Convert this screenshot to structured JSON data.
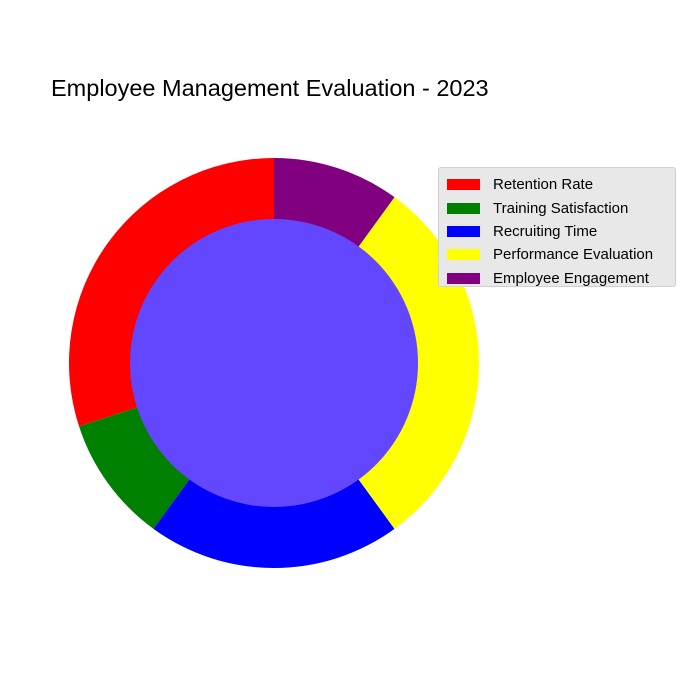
{
  "chart_data": {
    "type": "pie",
    "title": "Employee Management Evaluation - 2023",
    "categories": [
      "Retention Rate",
      "Training Satisfaction",
      "Recruiting Time",
      "Performance Evaluation",
      "Employee Engagement"
    ],
    "values": [
      30,
      10,
      20,
      30,
      10
    ],
    "colors": [
      "#ff0000",
      "#008000",
      "#0000ff",
      "#ffff00",
      "#800080"
    ],
    "center_color": "#6347ff",
    "start_angle_deg": 90,
    "direction": "counterclockwise",
    "donut": true,
    "legend": "top-right"
  }
}
